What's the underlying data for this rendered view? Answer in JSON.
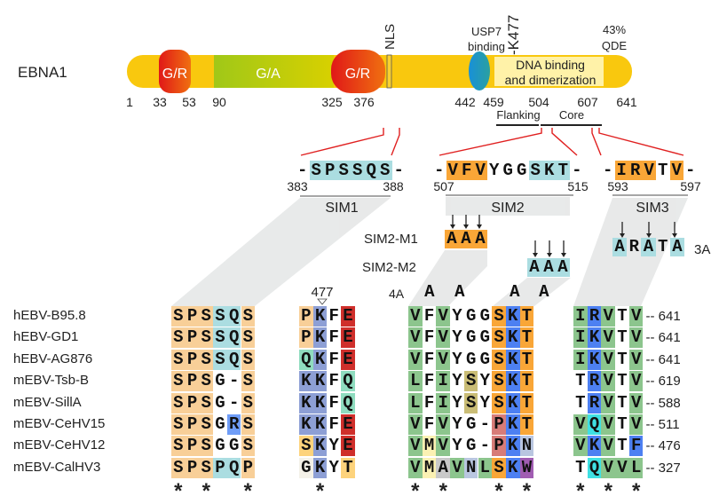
{
  "protein": {
    "name": "EBNA1",
    "domains": {
      "gr": "G/R",
      "ga": "G/A",
      "nls": "NLS",
      "usp7": [
        "USP7",
        "binding"
      ],
      "k477": "-K477",
      "qde": [
        "43%",
        "QDE"
      ],
      "dna": [
        "DNA binding",
        "and dimerization"
      ]
    },
    "positions": [
      "1",
      "33",
      "53",
      "90",
      "325",
      "376",
      "442",
      "459",
      "504",
      "607",
      "641"
    ],
    "subregions": [
      "Flanking",
      "Core"
    ],
    "colors": {
      "backbone": "#f9c80e",
      "gr": "#e8201e",
      "ga": "#a8c815",
      "usp7": "#1e8fd0",
      "dna": "#fff2a8"
    }
  },
  "sims": [
    {
      "name": "SIM1",
      "seq": "-SPSSQS-",
      "start": "383",
      "end": "388"
    },
    {
      "name": "SIM2",
      "seq": "-VFVYGGSKT-",
      "start": "507",
      "end": "515"
    },
    {
      "name": "SIM3",
      "seq": "-IRVTV-",
      "start": "593",
      "end": "597"
    }
  ],
  "mutants": {
    "m1": {
      "label": "SIM2-M1",
      "seq": "AAA"
    },
    "m2": {
      "label": "SIM2-M2",
      "seq": "AAA"
    },
    "sim3": {
      "label": "3A",
      "seq": "ARATA"
    },
    "fourA": {
      "label": "4A",
      "letters": [
        "A",
        "A",
        "A",
        "A"
      ]
    },
    "site": "477"
  },
  "palette": {
    "o": "#f8cf98",
    "c": "#abdde1",
    "b": "#8d9fd5",
    "r": "#cf2f2b",
    "q": "#8fdcbf",
    "s": "#fdd37c",
    "w": "#f4f1e8",
    "g": "#8cc58d",
    "O": "#f9a637",
    "B": "#4d80f2",
    "y": "#cabd76",
    "p": "#d77c78",
    "l": "#b9c6e0",
    "Y": "#fbf1b3",
    "G": "#c9c9c9",
    "P": "#a15db2",
    "C": "#3fe0e3",
    "R": "#6f9df7",
    ".": ""
  },
  "alignment": {
    "rows": [
      {
        "label": "hEBV-B95.8",
        "blocks": [
          "SPSSQS",
          "PKFE",
          "VFVYGGSKT",
          "IRVTV"
        ],
        "colors": [
          "oooLco",
          "ob.r",
          "g.g...OBO",
          "gBg.g"
        ],
        "end": "-- 641"
      },
      {
        "label": "hEBV-GD1",
        "blocks": [
          "SPSSQS",
          "PKFE",
          "VFVYGGSKT",
          "IKVTV"
        ],
        "colors": [
          "oooLco",
          "ob.r",
          "g.g...OBO",
          "gBg.g"
        ],
        "end": "-- 641"
      },
      {
        "label": "hEBV-AG876",
        "blocks": [
          "SPSSQS",
          "QKFE",
          "VFVYGGSKT",
          "IKVTV"
        ],
        "colors": [
          "oooLco",
          "qb.r",
          "g.g...OBO",
          "gBg.g"
        ],
        "end": "-- 641"
      },
      {
        "label": "mEBV-Tsb-B",
        "blocks": [
          "SPSG-S",
          "KKFQ",
          "LFIYSYSKT",
          "TRVTV"
        ],
        "colors": [
          "ooo..o",
          "bb.q",
          "g.g.y.OBO",
          ".Bg.g"
        ],
        "end": "-- 619"
      },
      {
        "label": "mEBV-SillA",
        "blocks": [
          "SPSG-S",
          "KKFQ",
          "LFIYSYSKT",
          "TRVTV"
        ],
        "colors": [
          "ooo..o",
          "bb.q",
          "g.g.y.OBO",
          ".Bg.g"
        ],
        "end": "-- 588"
      },
      {
        "label": "mEBV-CeHV15",
        "blocks": [
          "SPSGRS",
          "KKFE",
          "VFVYG-PKT",
          "VQVTV"
        ],
        "colors": [
          "ooo.Ro",
          "bb.r",
          "g.g...pBO",
          "gCg.g"
        ],
        "end": "-- 511"
      },
      {
        "label": "mEBV-CeHV12",
        "blocks": [
          "SPSGGS",
          "SKYE",
          "VMVYG-PKN",
          "VKVTF"
        ],
        "colors": [
          "ooo..o",
          "sb.r",
          "gYg...pBl",
          "gBg.B"
        ],
        "end": "-- 476"
      },
      {
        "label": "mEBV-CalHV3",
        "blocks": [
          "SPSPQP",
          "GKYT",
          "VMAVNLSKW",
          "TQVVL"
        ],
        "colors": [
          "oooLco",
          "wb.s",
          "gYGglgOBP",
          ".Cggg"
        ],
        "end": "-- 327"
      }
    ],
    "conserved": [
      "*.*..*",
      ".*..",
      "*.*...*.*",
      "*.*.*"
    ]
  }
}
